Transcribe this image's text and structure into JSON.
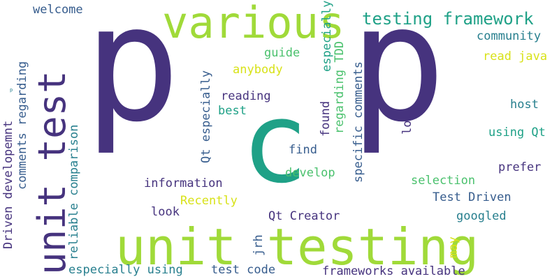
{
  "words": {
    "p1": "p",
    "p2": "p",
    "c": "c",
    "unit_testing": "unit testing",
    "various": "various",
    "unit_test": "unit test",
    "testing_framework": "testing framework",
    "welcome": "welcome",
    "community": "community",
    "guide": "guide",
    "read_java": "read java",
    "anybody": "anybody",
    "regarding_tdd": "regarding TDD",
    "especially": "especially",
    "reading": "reading",
    "host": "host",
    "best": "best",
    "found": "found",
    "specific_comments": "specific comments",
    "lot": "lot",
    "using_qt": "using Qt",
    "qt_especially": "Qt especially",
    "find": "find",
    "comments_regarding": "comments regarding",
    "prefer": "prefer",
    "develop": "develop",
    "selection": "selection",
    "information": "information",
    "recently": "Recently",
    "test_driven": "Test Driven",
    "look": "look",
    "googled": "googled",
    "driven_developemnt": "Driven developemnt",
    "reliable_comparison": "reliable comparison",
    "qt_creator": "Qt Creator",
    "jrh": "jrh",
    "may": "may",
    "especially_using": "especially using",
    "test_code": "test code",
    "frameworks_available": "frameworks available",
    "tiny_p": "p"
  },
  "palette": {
    "dark_purple": "#440154",
    "purple": "#46337e",
    "blue": "#365c8d",
    "teal": "#277f8e",
    "green": "#1fa187",
    "light_green": "#4ac16d",
    "lime": "#a0da39",
    "yellow": "#d8e219"
  }
}
